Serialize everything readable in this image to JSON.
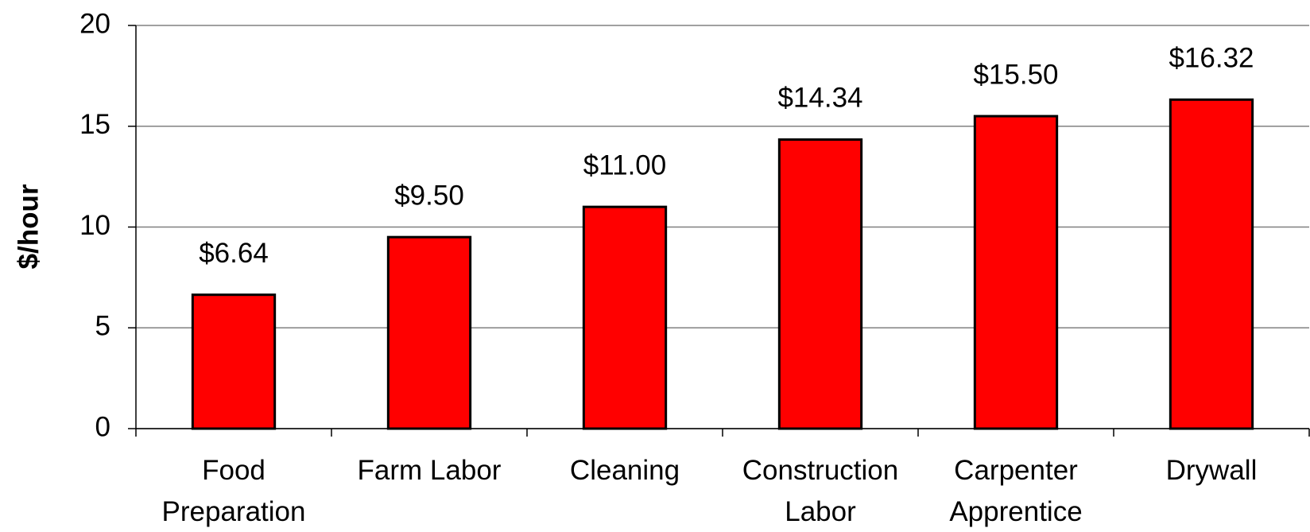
{
  "chart_data": {
    "type": "bar",
    "y_label": "$/hour",
    "categories": [
      "Food\nPreparation",
      "Farm Labor",
      "Cleaning",
      "Construction\nLabor",
      "Carpenter\nApprentice",
      "Drywall"
    ],
    "values": [
      6.64,
      9.5,
      11,
      14.34,
      15.5,
      16.32
    ],
    "value_labels": [
      "$6.64",
      "$9.50",
      "$11.00",
      "$14.34",
      "$15.50",
      "$16.32"
    ],
    "color": "#ff0000",
    "ylim": [
      0,
      20
    ],
    "yticks": [
      0,
      5,
      10,
      15,
      20
    ],
    "grid": true
  }
}
